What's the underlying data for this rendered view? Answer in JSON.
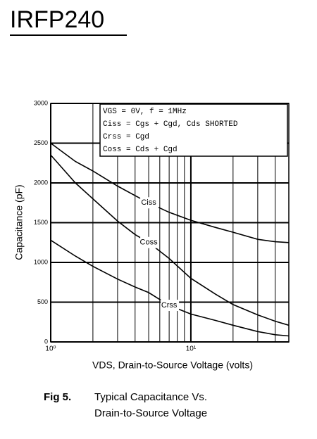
{
  "header": {
    "title": "IRFP240"
  },
  "chart_data": {
    "type": "line",
    "ylabel": "Capacitance (pF)",
    "xlabel": "VDS, Drain-to-Source Voltage (volts)",
    "log_x": true,
    "xlim": [
      1,
      50
    ],
    "ylim": [
      0,
      3000
    ],
    "xticks": [
      {
        "value": 1,
        "label": "10⁰"
      },
      {
        "value": 10,
        "label": "10¹"
      }
    ],
    "xminorticks": [
      2,
      3,
      4,
      5,
      6,
      7,
      8,
      9,
      20,
      30,
      40
    ],
    "yticks": [
      0,
      500,
      1000,
      1500,
      2000,
      2500,
      3000
    ],
    "grid": true,
    "annotation": [
      "VGS = 0V,  f = 1MHz",
      "Ciss = Cgs + Cgd,  Cds SHORTED",
      "Crss = Cgd",
      "Coss = Cds + Cgd"
    ],
    "x": [
      1,
      1.5,
      2,
      3,
      4,
      5,
      7,
      10,
      15,
      20,
      30,
      40,
      50
    ],
    "series": [
      {
        "name": "Ciss",
        "color": "#000000",
        "values": [
          2500,
          2270,
          2150,
          1960,
          1840,
          1750,
          1630,
          1530,
          1440,
          1380,
          1290,
          1260,
          1250
        ]
      },
      {
        "name": "Coss",
        "color": "#000000",
        "values": [
          2350,
          2000,
          1800,
          1520,
          1350,
          1250,
          1050,
          800,
          600,
          470,
          340,
          260,
          210
        ]
      },
      {
        "name": "Crss",
        "color": "#000000",
        "values": [
          1280,
          1080,
          950,
          790,
          690,
          620,
          460,
          350,
          270,
          210,
          130,
          90,
          75
        ]
      }
    ]
  },
  "caption": {
    "label": "Fig 5.",
    "lines": [
      "Typical Capacitance Vs.",
      "Drain-to-Source Voltage"
    ]
  }
}
